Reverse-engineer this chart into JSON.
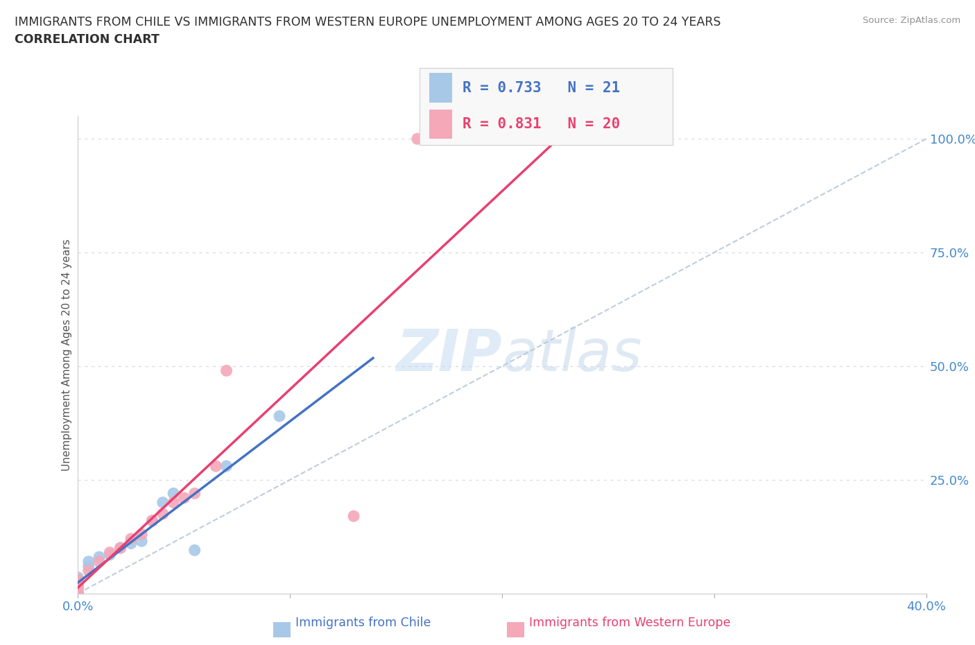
{
  "title_line1": "IMMIGRANTS FROM CHILE VS IMMIGRANTS FROM WESTERN EUROPE UNEMPLOYMENT AMONG AGES 20 TO 24 YEARS",
  "title_line2": "CORRELATION CHART",
  "source": "Source: ZipAtlas.com",
  "ylabel": "Unemployment Among Ages 20 to 24 years",
  "xlim": [
    0.0,
    0.4
  ],
  "ylim": [
    0.0,
    1.05
  ],
  "xticks": [
    0.0,
    0.1,
    0.2,
    0.3,
    0.4
  ],
  "xtick_labels": [
    "0.0%",
    "",
    "",
    "",
    "40.0%"
  ],
  "ytick_labels": [
    "",
    "25.0%",
    "50.0%",
    "75.0%",
    "100.0%"
  ],
  "yticks": [
    0.0,
    0.25,
    0.5,
    0.75,
    1.0
  ],
  "r_chile": 0.733,
  "n_chile": 21,
  "r_western": 0.831,
  "n_western": 20,
  "color_chile": "#a8c8e8",
  "color_western": "#f4a8b8",
  "line_color_chile": "#4472c4",
  "line_color_western": "#e84070",
  "diagonal_color": "#b8c8d8",
  "background_color": "#ffffff",
  "chile_x": [
    0.0,
    0.0,
    0.0,
    0.0,
    0.0,
    0.0,
    0.0,
    0.0,
    0.005,
    0.005,
    0.01,
    0.015,
    0.02,
    0.025,
    0.03,
    0.035,
    0.04,
    0.045,
    0.055,
    0.07,
    0.095
  ],
  "chile_y": [
    0.0,
    0.0,
    0.01,
    0.015,
    0.02,
    0.025,
    0.03,
    0.035,
    0.06,
    0.07,
    0.08,
    0.085,
    0.1,
    0.11,
    0.115,
    0.16,
    0.2,
    0.22,
    0.095,
    0.28,
    0.39
  ],
  "western_x": [
    0.0,
    0.0,
    0.0,
    0.0,
    0.0,
    0.005,
    0.01,
    0.015,
    0.02,
    0.025,
    0.03,
    0.035,
    0.04,
    0.045,
    0.05,
    0.055,
    0.065,
    0.07,
    0.13,
    0.16
  ],
  "western_y": [
    0.0,
    0.01,
    0.02,
    0.025,
    0.03,
    0.05,
    0.07,
    0.09,
    0.1,
    0.12,
    0.13,
    0.16,
    0.175,
    0.2,
    0.21,
    0.22,
    0.28,
    0.49,
    0.17,
    1.0
  ],
  "grid_color": "#d0d8e0",
  "tick_color": "#4488cc",
  "title_color": "#303030",
  "legend_facecolor": "#f8f8f8",
  "legend_edgecolor": "#d0d0d0"
}
